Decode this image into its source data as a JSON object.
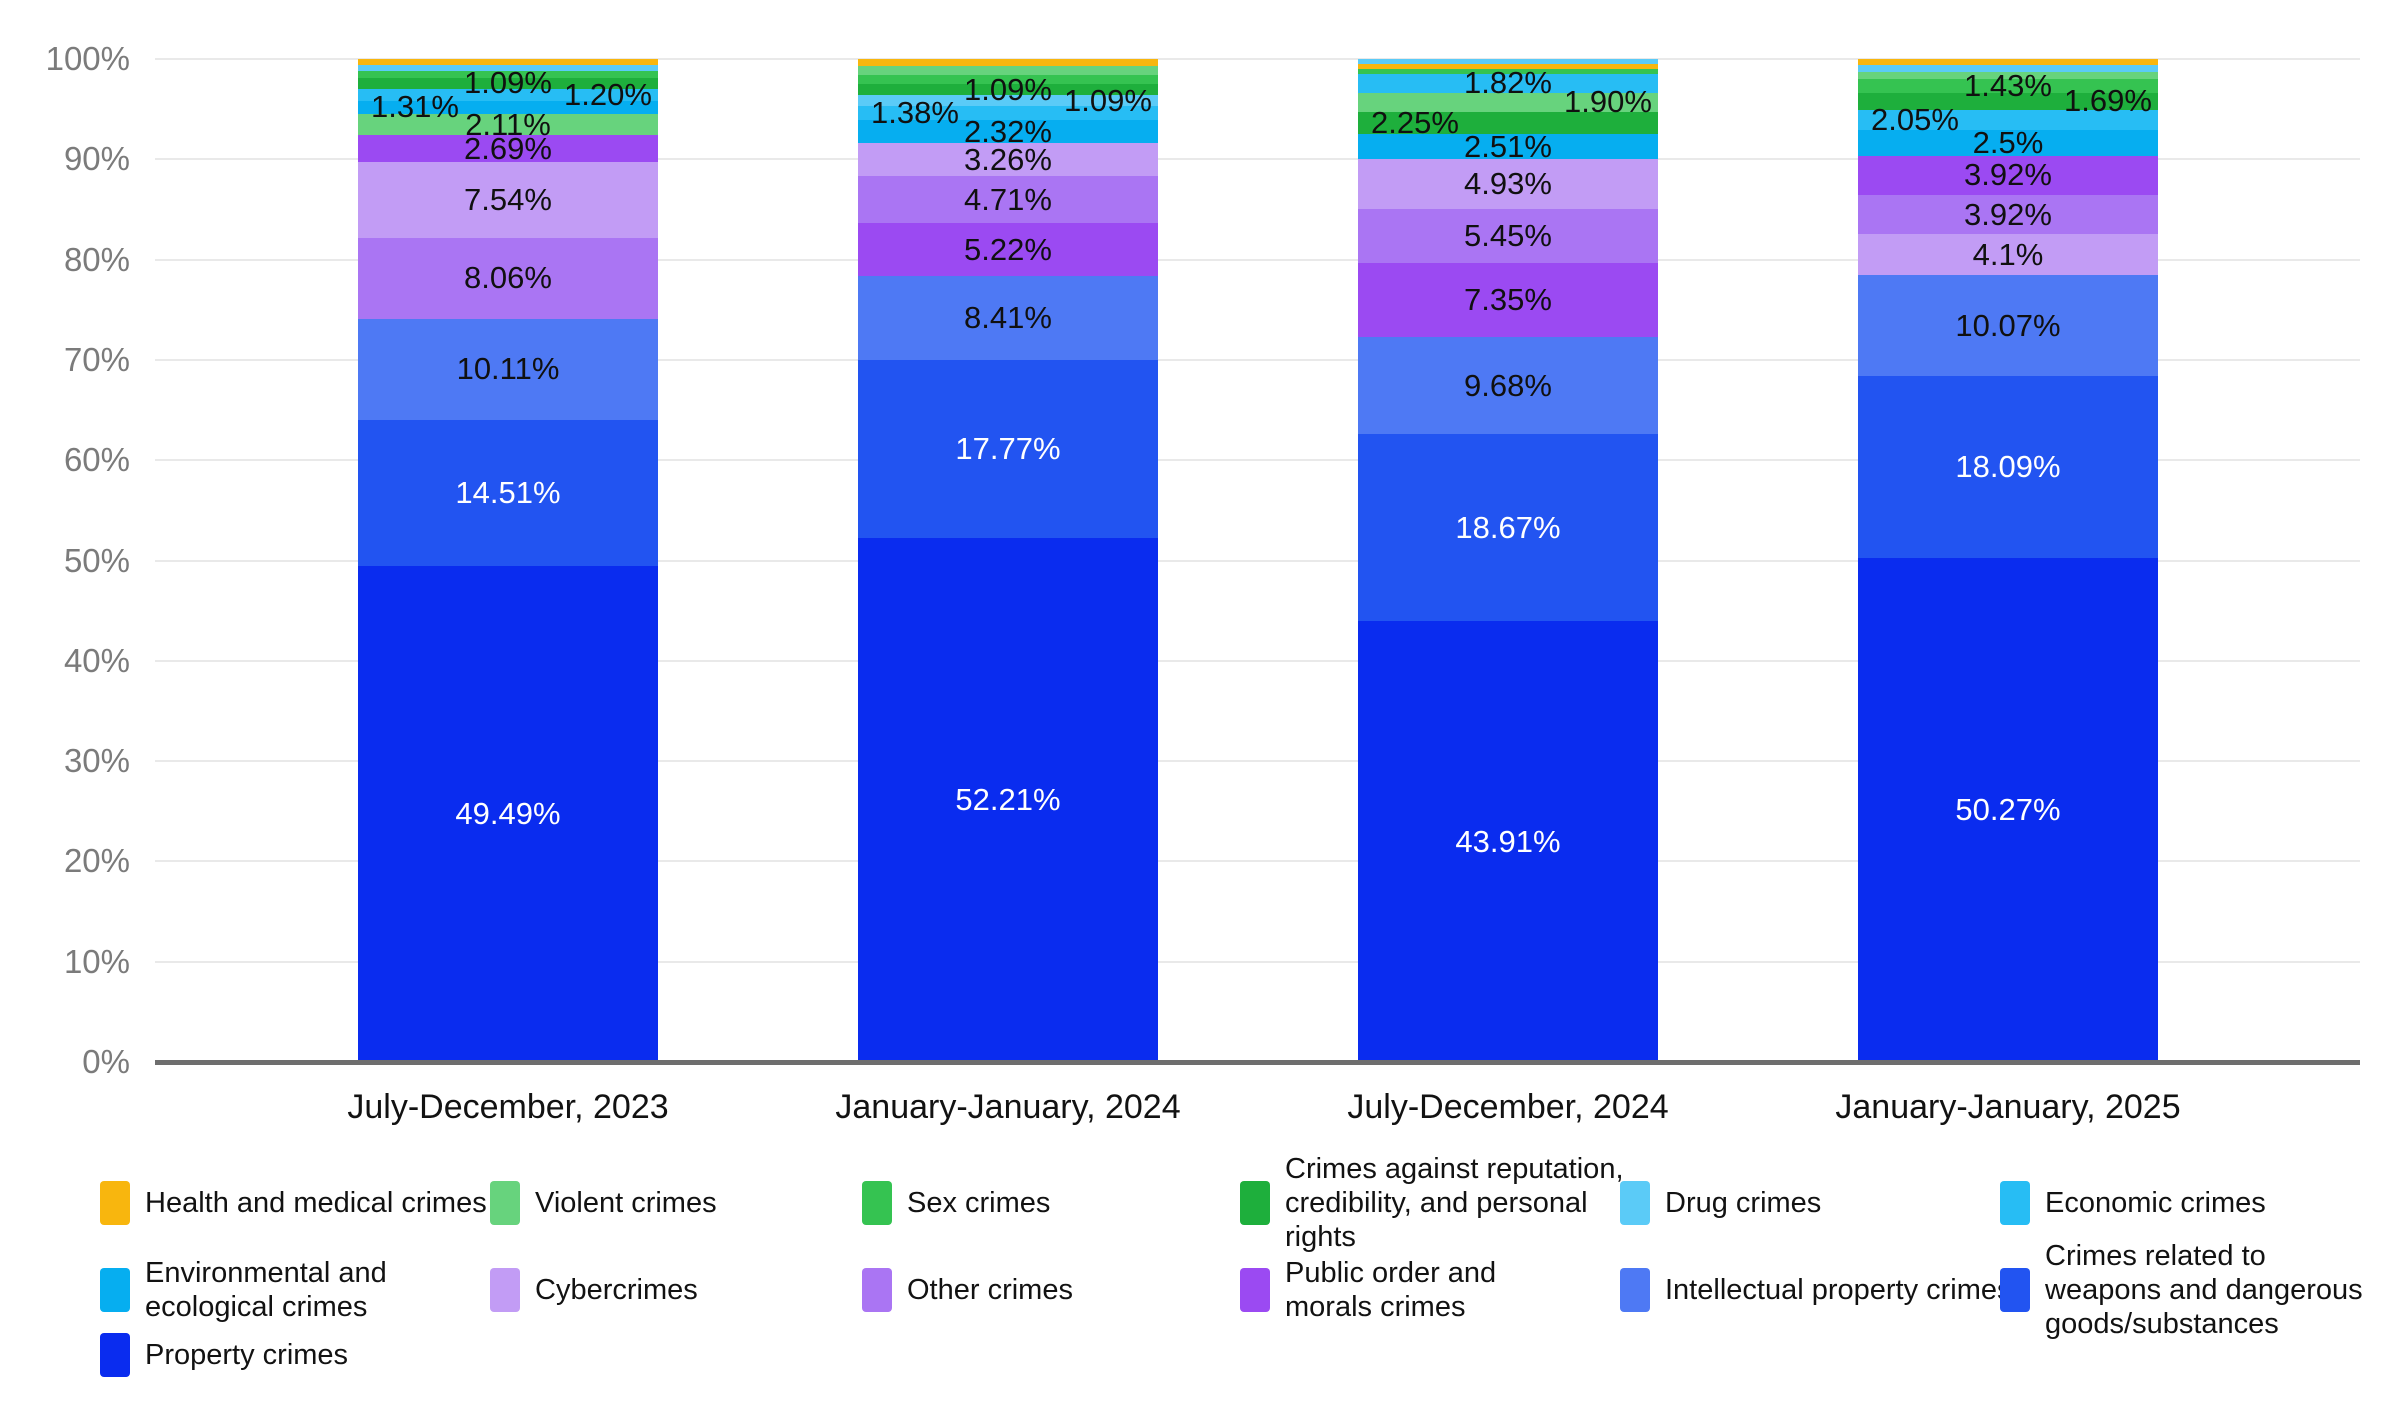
{
  "chart_data": {
    "type": "bar",
    "stacked": true,
    "percent_stacked": true,
    "title": "",
    "xlabel": "",
    "ylabel": "",
    "ylim": [
      0,
      100
    ],
    "grid": "horizontal",
    "legend_position": "bottom",
    "y_ticks": [
      "0%",
      "10%",
      "20%",
      "30%",
      "40%",
      "50%",
      "60%",
      "70%",
      "80%",
      "90%",
      "100%"
    ],
    "periods": [
      "July-December, 2023",
      "January-January, 2024",
      "July-December, 2024",
      "January-January, 2025"
    ],
    "categories": {
      "health": {
        "label": "Health and medical crimes",
        "color": "#F8B60E",
        "legend_lines": [
          "Health and medical crimes"
        ]
      },
      "violent": {
        "label": "Violent crimes",
        "color": "#67D37D",
        "legend_lines": [
          "Violent crimes"
        ]
      },
      "sex": {
        "label": "Sex crimes",
        "color": "#35C351",
        "legend_lines": [
          "Sex crimes"
        ]
      },
      "reputation": {
        "label": "Crimes against reputation, credibility, and personal rights",
        "color": "#1EAF3C",
        "legend_lines": [
          "Crimes against reputation,",
          "credibility, and personal",
          "rights"
        ]
      },
      "drug": {
        "label": "Drug crimes",
        "color": "#5BCBF7",
        "legend_lines": [
          "Drug crimes"
        ]
      },
      "economic": {
        "label": "Economic crimes",
        "color": "#27BDF4",
        "legend_lines": [
          "Economic crimes"
        ]
      },
      "environmental": {
        "label": "Environmental and ecological crimes",
        "color": "#06AEF0",
        "legend_lines": [
          "Environmental and",
          "ecological crimes"
        ]
      },
      "cybercrimes": {
        "label": "Cybercrimes",
        "color": "#C29CF5",
        "legend_lines": [
          "Cybercrimes"
        ]
      },
      "other": {
        "label": "Other crimes",
        "color": "#AA75F3",
        "legend_lines": [
          "Other crimes"
        ]
      },
      "public_order": {
        "label": "Public order and morals crimes",
        "color": "#9B4AF2",
        "legend_lines": [
          "Public order and",
          "morals crimes"
        ]
      },
      "intellectual_property": {
        "label": "Intellectual property crimes",
        "color": "#4E79F4",
        "legend_lines": [
          "Intellectual property crimes"
        ]
      },
      "weapons": {
        "label": "Crimes related to weapons and dangerous goods/substances",
        "color": "#2254F1",
        "legend_lines": [
          "Crimes related to",
          "weapons and dangerous",
          "goods/substances"
        ]
      },
      "property": {
        "label": "Property crimes",
        "color": "#0A2CEF",
        "legend_lines": [
          "Property crimes"
        ]
      }
    },
    "series": [
      {
        "name": "Health and medical crimes",
        "values": [
          0.55,
          0.7,
          0.5,
          0.6
        ]
      },
      {
        "name": "Violent crimes",
        "values": [
          2.11,
          0.88,
          1.9,
          0.71
        ]
      },
      {
        "name": "Sex crimes",
        "values": [
          0.72,
          0.96,
          0.58,
          1.43
        ]
      },
      {
        "name": "Crimes against reputation, credibility, and personal rights",
        "values": [
          1.09,
          1.09,
          2.25,
          1.69
        ]
      },
      {
        "name": "Drug crimes",
        "values": [
          0.62,
          1.09,
          0.45,
          0.65
        ]
      },
      {
        "name": "Economic crimes",
        "values": [
          1.2,
          1.38,
          1.82,
          2.05
        ]
      },
      {
        "name": "Environmental and ecological crimes",
        "values": [
          1.31,
          2.32,
          2.51,
          2.5
        ]
      },
      {
        "name": "Cybercrimes",
        "values": [
          7.54,
          3.26,
          4.93,
          4.1
        ]
      },
      {
        "name": "Other crimes",
        "values": [
          8.06,
          4.71,
          5.45,
          3.92
        ]
      },
      {
        "name": "Public order and morals crimes",
        "values": [
          2.69,
          5.22,
          7.35,
          3.92
        ]
      },
      {
        "name": "Intellectual property crimes",
        "values": [
          10.11,
          8.41,
          9.68,
          10.07
        ]
      },
      {
        "name": "Crimes related to weapons and dangerous goods/substances",
        "values": [
          14.51,
          17.77,
          18.67,
          18.09
        ]
      },
      {
        "name": "Property crimes",
        "values": [
          49.49,
          52.21,
          43.91,
          50.27
        ]
      }
    ],
    "bars": [
      {
        "period": "July-December, 2023",
        "segments": [
          {
            "category": "health",
            "value": 0.55,
            "label": null
          },
          {
            "category": "drug",
            "value": 0.62,
            "label": null
          },
          {
            "category": "sex",
            "value": 0.72,
            "label": null
          },
          {
            "category": "reputation",
            "value": 1.09,
            "label": "1.09%",
            "pos": "center"
          },
          {
            "category": "economic",
            "value": 1.2,
            "label": "1.20%",
            "pos": "right"
          },
          {
            "category": "environmental",
            "value": 1.31,
            "label": "1.31%",
            "pos": "left"
          },
          {
            "category": "violent",
            "value": 2.11,
            "label": "2.11%",
            "pos": "center"
          },
          {
            "category": "public_order",
            "value": 2.69,
            "label": "2.69%",
            "pos": "center"
          },
          {
            "category": "cybercrimes",
            "value": 7.54,
            "label": "7.54%",
            "pos": "center"
          },
          {
            "category": "other",
            "value": 8.06,
            "label": "8.06%",
            "pos": "center"
          },
          {
            "category": "intellectual_property",
            "value": 10.11,
            "label": "10.11%",
            "pos": "center"
          },
          {
            "category": "weapons",
            "value": 14.51,
            "label": "14.51%",
            "pos": "center",
            "light": true
          },
          {
            "category": "property",
            "value": 49.49,
            "label": "49.49%",
            "pos": "center",
            "light": true
          }
        ]
      },
      {
        "period": "January-January, 2024",
        "segments": [
          {
            "category": "health",
            "value": 0.7,
            "label": null
          },
          {
            "category": "violent",
            "value": 0.88,
            "label": null
          },
          {
            "category": "sex",
            "value": 0.96,
            "label": null
          },
          {
            "category": "reputation",
            "value": 1.09,
            "label": "1.09%",
            "pos": "center"
          },
          {
            "category": "drug",
            "value": 1.09,
            "label": "1.09%",
            "pos": "right"
          },
          {
            "category": "economic",
            "value": 1.38,
            "label": "1.38%",
            "pos": "left"
          },
          {
            "category": "environmental",
            "value": 2.32,
            "label": "2.32%",
            "pos": "center"
          },
          {
            "category": "cybercrimes",
            "value": 3.26,
            "label": "3.26%",
            "pos": "center"
          },
          {
            "category": "other",
            "value": 4.71,
            "label": "4.71%",
            "pos": "center"
          },
          {
            "category": "public_order",
            "value": 5.22,
            "label": "5.22%",
            "pos": "center"
          },
          {
            "category": "intellectual_property",
            "value": 8.41,
            "label": "8.41%",
            "pos": "center"
          },
          {
            "category": "weapons",
            "value": 17.77,
            "label": "17.77%",
            "pos": "center",
            "light": true
          },
          {
            "category": "property",
            "value": 52.21,
            "label": "52.21%",
            "pos": "center",
            "light": true
          }
        ]
      },
      {
        "period": "July-December, 2024",
        "segments": [
          {
            "category": "drug",
            "value": 0.45,
            "label": null
          },
          {
            "category": "health",
            "value": 0.5,
            "label": null
          },
          {
            "category": "sex",
            "value": 0.58,
            "label": null
          },
          {
            "category": "economic",
            "value": 1.82,
            "label": "1.82%",
            "pos": "center"
          },
          {
            "category": "violent",
            "value": 1.9,
            "label": "1.90%",
            "pos": "right"
          },
          {
            "category": "reputation",
            "value": 2.25,
            "label": "2.25%",
            "pos": "left"
          },
          {
            "category": "environmental",
            "value": 2.51,
            "label": "2.51%",
            "pos": "center"
          },
          {
            "category": "cybercrimes",
            "value": 4.93,
            "label": "4.93%",
            "pos": "center"
          },
          {
            "category": "other",
            "value": 5.45,
            "label": "5.45%",
            "pos": "center"
          },
          {
            "category": "public_order",
            "value": 7.35,
            "label": "7.35%",
            "pos": "center"
          },
          {
            "category": "intellectual_property",
            "value": 9.68,
            "label": "9.68%",
            "pos": "center"
          },
          {
            "category": "weapons",
            "value": 18.67,
            "label": "18.67%",
            "pos": "center",
            "light": true
          },
          {
            "category": "property",
            "value": 43.91,
            "label": "43.91%",
            "pos": "center",
            "light": true
          }
        ]
      },
      {
        "period": "January-January, 2025",
        "segments": [
          {
            "category": "health",
            "value": 0.6,
            "label": null
          },
          {
            "category": "drug",
            "value": 0.65,
            "label": null
          },
          {
            "category": "violent",
            "value": 0.71,
            "label": null
          },
          {
            "category": "sex",
            "value": 1.43,
            "label": "1.43%",
            "pos": "center"
          },
          {
            "category": "reputation",
            "value": 1.69,
            "label": "1.69%",
            "pos": "right"
          },
          {
            "category": "economic",
            "value": 2.05,
            "label": "2.05%",
            "pos": "left"
          },
          {
            "category": "environmental",
            "value": 2.5,
            "label": "2.5%",
            "pos": "center"
          },
          {
            "category": "public_order",
            "value": 3.92,
            "label": "3.92%",
            "pos": "center"
          },
          {
            "category": "other",
            "value": 3.92,
            "label": "3.92%",
            "pos": "center"
          },
          {
            "category": "cybercrimes",
            "value": 4.1,
            "label": "4.1%",
            "pos": "center"
          },
          {
            "category": "intellectual_property",
            "value": 10.07,
            "label": "10.07%",
            "pos": "center"
          },
          {
            "category": "weapons",
            "value": 18.09,
            "label": "18.09%",
            "pos": "center",
            "light": true
          },
          {
            "category": "property",
            "value": 50.27,
            "label": "50.27%",
            "pos": "center",
            "light": true
          }
        ]
      }
    ],
    "legend_rows": [
      [
        "health",
        "violent",
        "sex",
        "reputation",
        "drug",
        "economic"
      ],
      [
        "environmental",
        "cybercrimes",
        "other",
        "public_order",
        "intellectual_property",
        "weapons"
      ],
      [
        "property"
      ]
    ]
  },
  "colors": {
    "gridline": "#e9e9e9",
    "axis_line": "#6e6e6e",
    "tick_text": "#7b7b7b",
    "label_dark": "#101010",
    "label_light": "#ffffff",
    "background": "#ffffff"
  }
}
